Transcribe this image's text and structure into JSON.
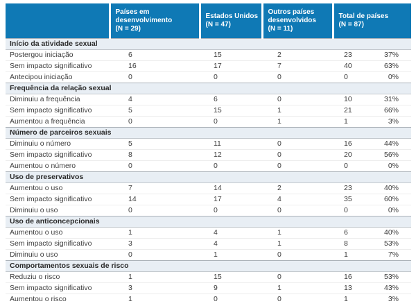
{
  "theme": {
    "header_bg": "#0f79b5",
    "header_text": "#ffffff",
    "section_bg": "#e8eef4",
    "body_text": "#3d3d3d"
  },
  "table": {
    "columns": [
      {
        "title": "",
        "n": ""
      },
      {
        "title": "Países em desenvolvimento",
        "n": "(N = 29)"
      },
      {
        "title": "Estados Unidos",
        "n": "(N = 47)"
      },
      {
        "title": "Outros países desenvolvidos",
        "n": "(N = 11)"
      },
      {
        "title": "Total de países",
        "n": "(N = 87)"
      }
    ],
    "sections": [
      {
        "header": "Início da atividade sexual",
        "rows": [
          {
            "label": "Postergou iniciação",
            "values": [
              "6",
              "15",
              "2",
              "23"
            ],
            "pct": "37%"
          },
          {
            "label": "Sem impacto significativo",
            "values": [
              "16",
              "17",
              "7",
              "40"
            ],
            "pct": "63%"
          },
          {
            "label": "Antecipou iniciação",
            "values": [
              "0",
              "0",
              "0",
              "0"
            ],
            "pct": "0%"
          }
        ]
      },
      {
        "header": "Frequência da relação sexual",
        "rows": [
          {
            "label": "Diminuiu a frequência",
            "values": [
              "4",
              "6",
              "0",
              "10"
            ],
            "pct": "31%"
          },
          {
            "label": "Sem impacto significativo",
            "values": [
              "5",
              "15",
              "1",
              "21"
            ],
            "pct": "66%"
          },
          {
            "label": "Aumentou a frequência",
            "values": [
              "0",
              "0",
              "1",
              "1"
            ],
            "pct": "3%"
          }
        ]
      },
      {
        "header": "Número de parceiros sexuais",
        "rows": [
          {
            "label": "Diminuiu o número",
            "values": [
              "5",
              "11",
              "0",
              "16"
            ],
            "pct": "44%"
          },
          {
            "label": "Sem impacto significativo",
            "values": [
              "8",
              "12",
              "0",
              "20"
            ],
            "pct": "56%"
          },
          {
            "label": "Aumentou o número",
            "values": [
              "0",
              "0",
              "0",
              "0"
            ],
            "pct": "0%"
          }
        ]
      },
      {
        "header": "Uso de preservativos",
        "rows": [
          {
            "label": "Aumentou o uso",
            "values": [
              "7",
              "14",
              "2",
              "23"
            ],
            "pct": "40%"
          },
          {
            "label": "Sem impacto significativo",
            "values": [
              "14",
              "17",
              "4",
              "35"
            ],
            "pct": "60%"
          },
          {
            "label": "Diminuiu o uso",
            "values": [
              "0",
              "0",
              "0",
              "0"
            ],
            "pct": "0%"
          }
        ]
      },
      {
        "header": "Uso de anticoncepcionais",
        "rows": [
          {
            "label": "Aumentou o uso",
            "values": [
              "1",
              "4",
              "1",
              "6"
            ],
            "pct": "40%"
          },
          {
            "label": "Sem impacto significativo",
            "values": [
              "3",
              "4",
              "1",
              "8"
            ],
            "pct": "53%"
          },
          {
            "label": "Diminuiu o uso",
            "values": [
              "0",
              "1",
              "0",
              "1"
            ],
            "pct": "7%"
          }
        ]
      },
      {
        "header": "Comportamentos sexuais de risco",
        "rows": [
          {
            "label": "Reduziu o risco",
            "values": [
              "1",
              "15",
              "0",
              "16"
            ],
            "pct": "53%"
          },
          {
            "label": "Sem impacto significativo",
            "values": [
              "3",
              "9",
              "1",
              "13"
            ],
            "pct": "43%"
          },
          {
            "label": "Aumentou o risco",
            "values": [
              "1",
              "0",
              "0",
              "1"
            ],
            "pct": "3%"
          }
        ]
      }
    ]
  }
}
